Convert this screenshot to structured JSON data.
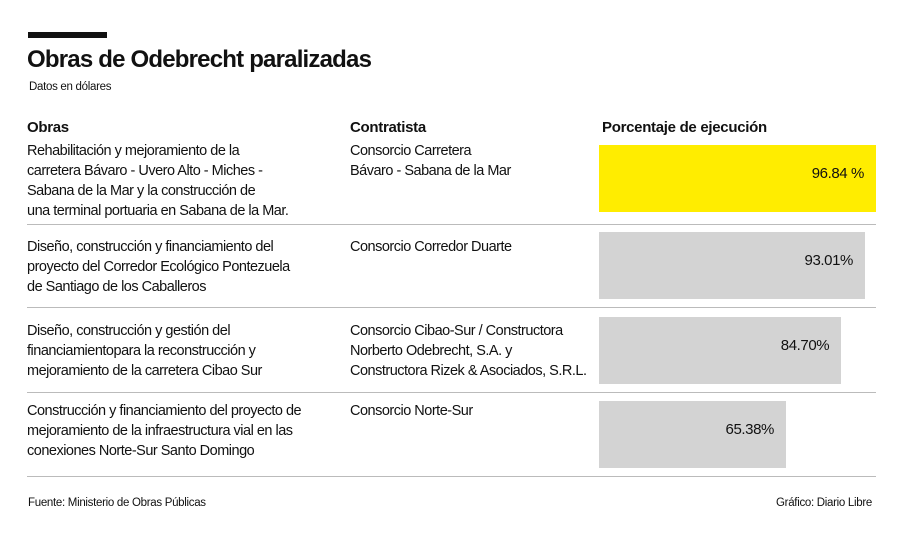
{
  "title": "Obras de Odebrecht paralizadas",
  "subtitle": "Datos en dólares",
  "headers": {
    "obras": "Obras",
    "contratista": "Contratista",
    "porcentaje": "Porcentaje de ejecución"
  },
  "rows": [
    {
      "obra": [
        "Rehabilitación y mejoramiento de la",
        "carretera Bávaro - Uvero Alto - Miches -",
        "Sabana de la Mar y la construcción de",
        "una terminal portuaria en Sabana de la Mar."
      ],
      "contratista": [
        "Consorcio Carretera",
        "Bávaro - Sabana de la Mar"
      ],
      "label": "96.84 %"
    },
    {
      "obra": [
        "Diseño, construcción y financiamiento del",
        "proyecto del Corredor Ecológico Pontezuela",
        "de Santiago de los Caballeros"
      ],
      "contratista": [
        "Consorcio Corredor Duarte"
      ],
      "label": "93.01%"
    },
    {
      "obra": [
        "Diseño, construcción y gestión del",
        "financiamientopara la reconstrucción y",
        "mejoramiento de la carretera Cibao Sur"
      ],
      "contratista": [
        "Consorcio Cibao-Sur / Constructora",
        "Norberto Odebrecht, S.A. y",
        "Constructora Rizek & Asociados, S.R.L."
      ],
      "label": "84.70%"
    },
    {
      "obra": [
        "Construcción y financiamiento del proyecto de",
        "mejoramiento de la infraestructura vial en las",
        "conexiones Norte-Sur Santo Domingo"
      ],
      "contratista": [
        "Consorcio Norte-Sur"
      ],
      "label": "65.38%"
    }
  ],
  "chart_data": {
    "type": "bar",
    "orientation": "horizontal",
    "categories": [
      "Consorcio Carretera Bávaro - Sabana de la Mar",
      "Consorcio Corredor Duarte",
      "Consorcio Cibao-Sur / Constructora Norberto Odebrecht, S.A. y Constructora Rizek & Asociados, S.R.L.",
      "Consorcio Norte-Sur"
    ],
    "values": [
      96.84,
      93.01,
      84.7,
      65.38
    ],
    "ylabel": "Porcentaje de ejecución",
    "xlim": [
      0,
      100
    ],
    "grid": false,
    "colors": [
      "#ffed00",
      "#d3d3d3",
      "#d3d3d3",
      "#d3d3d3"
    ]
  },
  "footer": {
    "source": "Fuente: Ministerio de Obras Públicas",
    "credit": "Gráfico: Diario Libre"
  }
}
